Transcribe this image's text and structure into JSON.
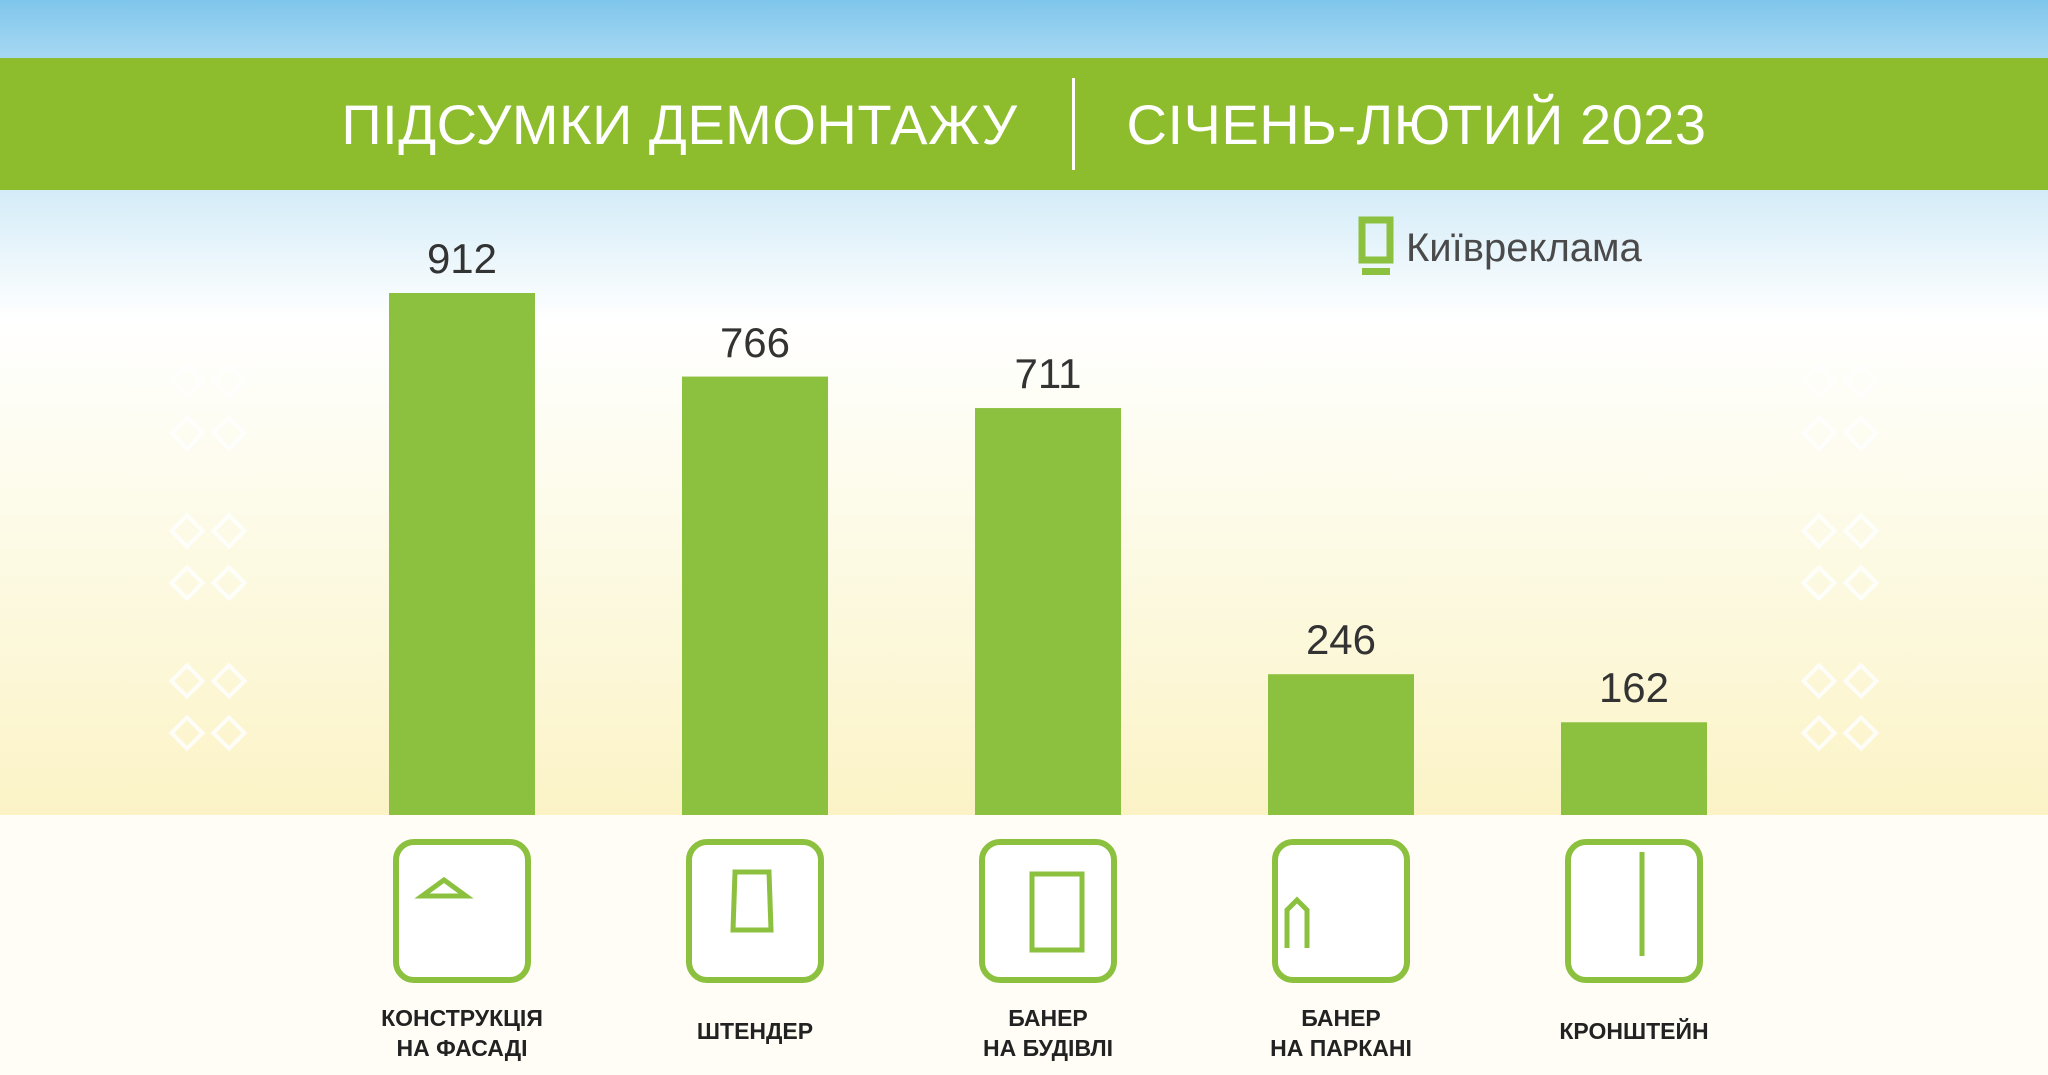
{
  "header": {
    "title_left": "ПІДСУМКИ ДЕМОНТАЖУ",
    "title_right": "СІЧЕНЬ-ЛЮТИЙ 2023"
  },
  "brand": {
    "name": "Київреклама",
    "icon": "billboard-logo-icon"
  },
  "colors": {
    "bar": "#8cc13f",
    "title_bar": "#8dbc2c",
    "icon_stroke": "#8cc13f"
  },
  "chart_data": {
    "type": "bar",
    "title": "ПІДСУМКИ ДЕМОНТАЖУ | СІЧЕНЬ-ЛЮТИЙ 2023",
    "categories": [
      "КОНСТРУКЦІЯ\nНА ФАСАДІ",
      "ШТЕНДЕР",
      "БАНЕР\nНА БУДІВЛІ",
      "БАНЕР\nНА ПАРКАНІ",
      "КРОНШТЕЙН"
    ],
    "values": [
      912,
      766,
      711,
      246,
      162
    ],
    "icons": [
      "building-facade-icon",
      "sandwich-board-icon",
      "building-banner-icon",
      "fence-banner-icon",
      "bracket-sign-icon"
    ],
    "xlabel": "",
    "ylabel": "",
    "ylim": [
      0,
      912
    ],
    "grid": false,
    "legend": "none"
  }
}
